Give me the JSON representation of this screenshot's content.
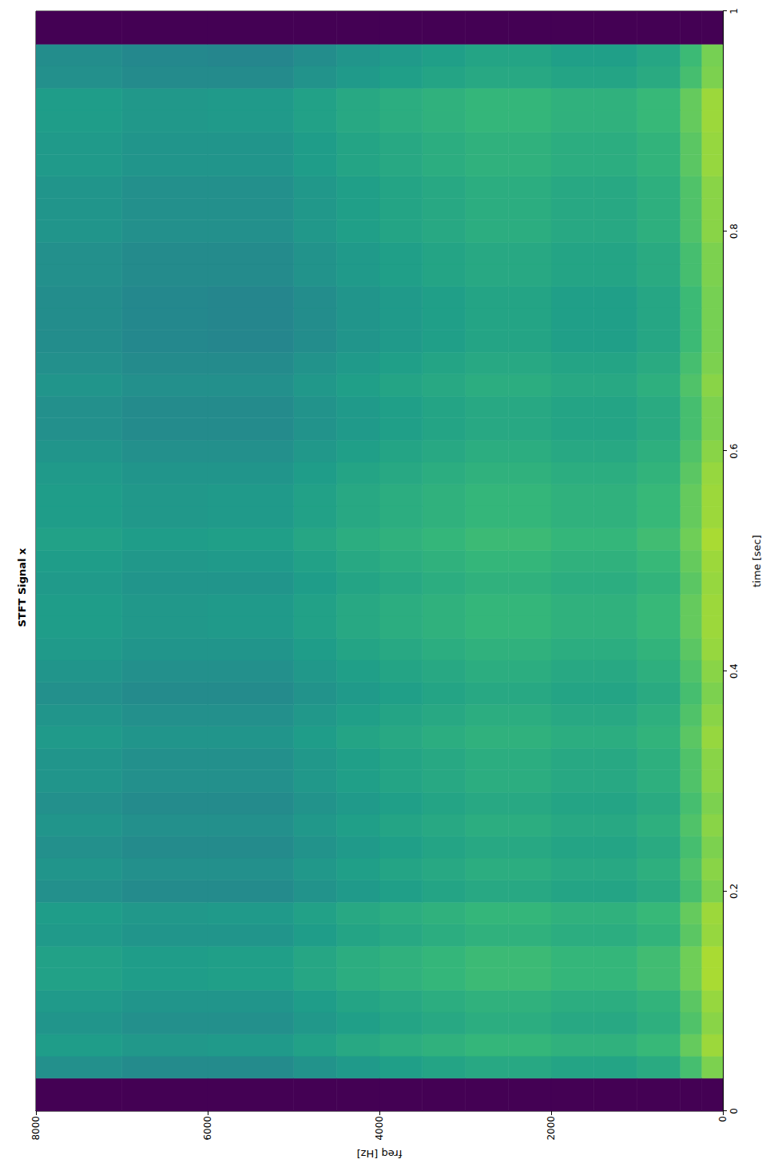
{
  "chart_data": {
    "type": "heatmap",
    "title": "STFT Signal x",
    "xlabel": "time [sec]",
    "ylabel": "freq [Hz]",
    "xlim": [
      0,
      1
    ],
    "xticks": [
      0,
      0.2,
      0.4,
      0.6,
      0.8,
      1
    ],
    "ylim": [
      0,
      8000
    ],
    "yticks": [
      0,
      2000,
      4000,
      6000,
      8000
    ],
    "grid": false,
    "time_bins": [
      0,
      0.03,
      0.05,
      0.07,
      0.09,
      0.11,
      0.13,
      0.15,
      0.17,
      0.19,
      0.21,
      0.23,
      0.25,
      0.27,
      0.29,
      0.31,
      0.33,
      0.35,
      0.37,
      0.39,
      0.41,
      0.43,
      0.45,
      0.47,
      0.49,
      0.51,
      0.53,
      0.55,
      0.57,
      0.59,
      0.61,
      0.63,
      0.65,
      0.67,
      0.69,
      0.71,
      0.73,
      0.75,
      0.77,
      0.79,
      0.81,
      0.83,
      0.85,
      0.87,
      0.89,
      0.91,
      0.93,
      0.95,
      0.97,
      1
    ],
    "freq_bins": [
      0,
      250,
      500,
      1000,
      1500,
      2000,
      2500,
      3000,
      3500,
      4000,
      4500,
      5000,
      6000,
      7000,
      8000
    ],
    "zlim": [
      0,
      1
    ],
    "z": [
      [
        0,
        0.8,
        0.85,
        0.82,
        0.84,
        0.87,
        0.87,
        0.84,
        0.85,
        0.8,
        0.82,
        0.8,
        0.82,
        0.8,
        0.82,
        0.82,
        0.84,
        0.82,
        0.8,
        0.82,
        0.84,
        0.85,
        0.85,
        0.84,
        0.85,
        0.87,
        0.85,
        0.85,
        0.84,
        0.82,
        0.8,
        0.8,
        0.82,
        0.8,
        0.79,
        0.79,
        0.79,
        0.8,
        0.8,
        0.82,
        0.82,
        0.82,
        0.84,
        0.84,
        0.85,
        0.85,
        0.8,
        0.79,
        0
      ],
      [
        0,
        0.7,
        0.76,
        0.72,
        0.74,
        0.78,
        0.78,
        0.74,
        0.76,
        0.7,
        0.72,
        0.7,
        0.72,
        0.7,
        0.72,
        0.72,
        0.74,
        0.72,
        0.7,
        0.72,
        0.74,
        0.76,
        0.76,
        0.74,
        0.76,
        0.78,
        0.76,
        0.76,
        0.74,
        0.72,
        0.7,
        0.7,
        0.72,
        0.7,
        0.68,
        0.68,
        0.68,
        0.7,
        0.7,
        0.72,
        0.72,
        0.72,
        0.74,
        0.74,
        0.76,
        0.76,
        0.7,
        0.68,
        0
      ],
      [
        0,
        0.61,
        0.67,
        0.63,
        0.65,
        0.69,
        0.69,
        0.65,
        0.67,
        0.61,
        0.63,
        0.61,
        0.63,
        0.61,
        0.63,
        0.63,
        0.65,
        0.63,
        0.61,
        0.63,
        0.65,
        0.67,
        0.67,
        0.65,
        0.67,
        0.69,
        0.67,
        0.67,
        0.65,
        0.63,
        0.61,
        0.61,
        0.63,
        0.61,
        0.59,
        0.59,
        0.59,
        0.61,
        0.61,
        0.63,
        0.63,
        0.63,
        0.65,
        0.65,
        0.67,
        0.67,
        0.61,
        0.59,
        0
      ],
      [
        0,
        0.58,
        0.64,
        0.6,
        0.62,
        0.66,
        0.66,
        0.62,
        0.64,
        0.58,
        0.6,
        0.58,
        0.6,
        0.58,
        0.6,
        0.6,
        0.62,
        0.6,
        0.58,
        0.6,
        0.62,
        0.64,
        0.64,
        0.62,
        0.64,
        0.66,
        0.64,
        0.64,
        0.62,
        0.6,
        0.58,
        0.58,
        0.6,
        0.58,
        0.56,
        0.56,
        0.56,
        0.58,
        0.58,
        0.6,
        0.6,
        0.6,
        0.62,
        0.62,
        0.64,
        0.64,
        0.58,
        0.56,
        0
      ],
      [
        0,
        0.58,
        0.64,
        0.6,
        0.62,
        0.66,
        0.66,
        0.62,
        0.64,
        0.58,
        0.6,
        0.58,
        0.6,
        0.58,
        0.6,
        0.6,
        0.62,
        0.6,
        0.58,
        0.6,
        0.62,
        0.64,
        0.64,
        0.62,
        0.64,
        0.66,
        0.64,
        0.64,
        0.62,
        0.6,
        0.58,
        0.58,
        0.6,
        0.58,
        0.56,
        0.56,
        0.56,
        0.58,
        0.58,
        0.6,
        0.6,
        0.6,
        0.62,
        0.62,
        0.64,
        0.64,
        0.58,
        0.56,
        0
      ],
      [
        0,
        0.6,
        0.66,
        0.62,
        0.64,
        0.68,
        0.68,
        0.64,
        0.66,
        0.6,
        0.62,
        0.6,
        0.62,
        0.6,
        0.62,
        0.62,
        0.64,
        0.62,
        0.6,
        0.62,
        0.64,
        0.66,
        0.66,
        0.64,
        0.66,
        0.68,
        0.66,
        0.66,
        0.64,
        0.62,
        0.6,
        0.6,
        0.62,
        0.6,
        0.58,
        0.58,
        0.58,
        0.6,
        0.6,
        0.62,
        0.62,
        0.62,
        0.64,
        0.64,
        0.66,
        0.66,
        0.6,
        0.58,
        0
      ],
      [
        0,
        0.6,
        0.66,
        0.62,
        0.64,
        0.68,
        0.68,
        0.64,
        0.66,
        0.6,
        0.62,
        0.6,
        0.62,
        0.6,
        0.62,
        0.62,
        0.64,
        0.62,
        0.6,
        0.62,
        0.64,
        0.66,
        0.66,
        0.64,
        0.66,
        0.68,
        0.66,
        0.66,
        0.64,
        0.62,
        0.6,
        0.6,
        0.62,
        0.6,
        0.58,
        0.58,
        0.58,
        0.6,
        0.6,
        0.62,
        0.62,
        0.62,
        0.64,
        0.64,
        0.66,
        0.66,
        0.6,
        0.58,
        0
      ],
      [
        0,
        0.58,
        0.64,
        0.6,
        0.62,
        0.66,
        0.66,
        0.62,
        0.64,
        0.58,
        0.6,
        0.58,
        0.6,
        0.58,
        0.6,
        0.6,
        0.62,
        0.6,
        0.58,
        0.6,
        0.62,
        0.64,
        0.64,
        0.62,
        0.64,
        0.66,
        0.64,
        0.64,
        0.62,
        0.6,
        0.58,
        0.58,
        0.6,
        0.58,
        0.56,
        0.56,
        0.56,
        0.58,
        0.58,
        0.6,
        0.6,
        0.6,
        0.62,
        0.62,
        0.64,
        0.64,
        0.58,
        0.56,
        0
      ],
      [
        0,
        0.56,
        0.62,
        0.58,
        0.6,
        0.64,
        0.64,
        0.6,
        0.62,
        0.56,
        0.58,
        0.56,
        0.58,
        0.56,
        0.58,
        0.58,
        0.6,
        0.58,
        0.56,
        0.58,
        0.6,
        0.62,
        0.62,
        0.6,
        0.62,
        0.64,
        0.62,
        0.62,
        0.6,
        0.58,
        0.56,
        0.56,
        0.58,
        0.56,
        0.54,
        0.54,
        0.54,
        0.56,
        0.56,
        0.58,
        0.58,
        0.58,
        0.6,
        0.6,
        0.62,
        0.62,
        0.56,
        0.54,
        0
      ],
      [
        0,
        0.54,
        0.6,
        0.56,
        0.58,
        0.62,
        0.62,
        0.58,
        0.6,
        0.54,
        0.56,
        0.54,
        0.56,
        0.54,
        0.56,
        0.56,
        0.58,
        0.56,
        0.54,
        0.56,
        0.58,
        0.6,
        0.6,
        0.58,
        0.6,
        0.62,
        0.6,
        0.6,
        0.58,
        0.56,
        0.54,
        0.54,
        0.56,
        0.54,
        0.52,
        0.52,
        0.52,
        0.54,
        0.54,
        0.56,
        0.56,
        0.56,
        0.58,
        0.58,
        0.6,
        0.6,
        0.54,
        0.52,
        0
      ],
      [
        0,
        0.51,
        0.57,
        0.53,
        0.55,
        0.59,
        0.59,
        0.55,
        0.57,
        0.51,
        0.53,
        0.51,
        0.53,
        0.51,
        0.53,
        0.53,
        0.55,
        0.53,
        0.51,
        0.53,
        0.55,
        0.57,
        0.57,
        0.55,
        0.57,
        0.59,
        0.57,
        0.57,
        0.55,
        0.53,
        0.51,
        0.51,
        0.53,
        0.51,
        0.49,
        0.49,
        0.49,
        0.51,
        0.51,
        0.53,
        0.53,
        0.53,
        0.55,
        0.55,
        0.57,
        0.57,
        0.51,
        0.49,
        0
      ],
      [
        0,
        0.48,
        0.54,
        0.5,
        0.52,
        0.56,
        0.56,
        0.52,
        0.54,
        0.48,
        0.5,
        0.48,
        0.5,
        0.48,
        0.5,
        0.5,
        0.52,
        0.5,
        0.48,
        0.5,
        0.52,
        0.54,
        0.54,
        0.52,
        0.54,
        0.56,
        0.54,
        0.54,
        0.52,
        0.5,
        0.48,
        0.48,
        0.5,
        0.48,
        0.46,
        0.46,
        0.46,
        0.48,
        0.48,
        0.5,
        0.5,
        0.5,
        0.52,
        0.52,
        0.54,
        0.54,
        0.48,
        0.46,
        0
      ],
      [
        0,
        0.48,
        0.53,
        0.5,
        0.52,
        0.55,
        0.55,
        0.52,
        0.53,
        0.48,
        0.5,
        0.48,
        0.5,
        0.48,
        0.5,
        0.5,
        0.52,
        0.5,
        0.48,
        0.5,
        0.52,
        0.53,
        0.53,
        0.52,
        0.53,
        0.55,
        0.53,
        0.53,
        0.52,
        0.5,
        0.48,
        0.48,
        0.5,
        0.48,
        0.47,
        0.47,
        0.47,
        0.48,
        0.48,
        0.5,
        0.5,
        0.5,
        0.52,
        0.52,
        0.53,
        0.53,
        0.48,
        0.47,
        0
      ],
      [
        0,
        0.5,
        0.55,
        0.52,
        0.54,
        0.57,
        0.57,
        0.54,
        0.55,
        0.5,
        0.52,
        0.5,
        0.52,
        0.5,
        0.52,
        0.52,
        0.54,
        0.52,
        0.5,
        0.52,
        0.54,
        0.55,
        0.55,
        0.54,
        0.55,
        0.57,
        0.55,
        0.55,
        0.54,
        0.52,
        0.5,
        0.5,
        0.52,
        0.5,
        0.49,
        0.49,
        0.49,
        0.5,
        0.5,
        0.52,
        0.52,
        0.52,
        0.54,
        0.54,
        0.55,
        0.55,
        0.5,
        0.49,
        0
      ]
    ]
  }
}
